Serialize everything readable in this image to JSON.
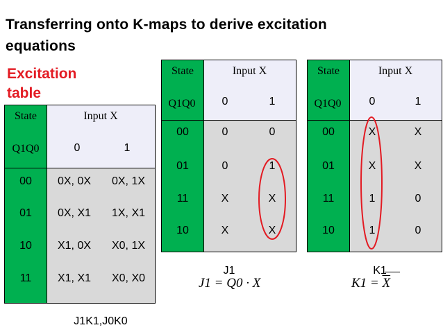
{
  "title_line1": "Transferring onto K-maps to derive excitation",
  "title_line2": "equations",
  "subtitle_line1": "Excitation",
  "subtitle_line2": "table",
  "excitation_table": {
    "state_label": "State",
    "input_label": "Input X",
    "q_label": "Q1Q0",
    "col0": "0",
    "col1": "1",
    "rows": [
      {
        "state": "00",
        "c0": "0X, 0X",
        "c1": "0X, 1X"
      },
      {
        "state": "01",
        "c0": "0X, X1",
        "c1": "1X, X1"
      },
      {
        "state": "10",
        "c0": "X1, 0X",
        "c1": "X0, 1X"
      },
      {
        "state": "11",
        "c0": "X1, X1",
        "c1": "X0, X0"
      }
    ],
    "caption": "J1K1,J0K0"
  },
  "kmap_j1": {
    "state_label": "State",
    "input_label": "Input X",
    "q_label": "Q1Q0",
    "col0": "0",
    "col1": "1",
    "rows": [
      {
        "state": "00",
        "c0": "0",
        "c1": "0"
      },
      {
        "state": "01",
        "c0": "0",
        "c1": "1"
      },
      {
        "state": "11",
        "c0": "X",
        "c1": "X"
      },
      {
        "state": "10",
        "c0": "X",
        "c1": "X"
      }
    ],
    "caption": "J1",
    "equation_lhs": "J1 = Q0 · X"
  },
  "kmap_k1": {
    "state_label": "State",
    "input_label": "Input X",
    "q_label": "Q1Q0",
    "col0": "0",
    "col1": "1",
    "rows": [
      {
        "state": "00",
        "c0": "X",
        "c1": "X"
      },
      {
        "state": "01",
        "c0": "X",
        "c1": "X"
      },
      {
        "state": "11",
        "c0": "1",
        "c1": "0"
      },
      {
        "state": "10",
        "c0": "1",
        "c1": "0"
      }
    ],
    "caption": "K1",
    "equation_lhs": "K1 =",
    "equation_rhs": "X"
  },
  "colors": {
    "green": "#00b050",
    "gray": "#d9d9d9",
    "lavender": "#eeeef9",
    "red": "#e31b23"
  }
}
